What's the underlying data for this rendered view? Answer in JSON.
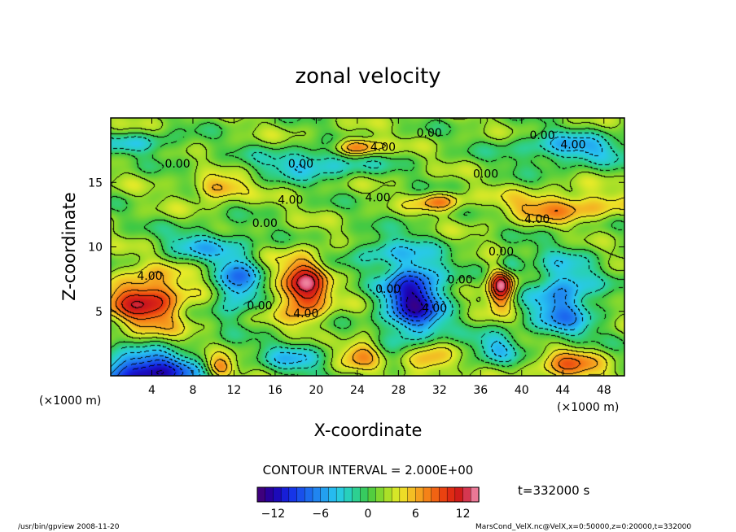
{
  "chart_data": {
    "type": "heatmap",
    "title": "zonal velocity",
    "xlabel": "X-coordinate",
    "ylabel": "Z-coordinate",
    "x_unit": "(×1000 m)",
    "y_unit": "(×1000 m)",
    "xlim": [
      0,
      50
    ],
    "ylim": [
      0,
      20
    ],
    "x_ticks": [
      "4",
      "8",
      "12",
      "16",
      "20",
      "24",
      "28",
      "32",
      "36",
      "40",
      "44",
      "48"
    ],
    "x_tick_values": [
      4,
      8,
      12,
      16,
      20,
      24,
      28,
      32,
      36,
      40,
      44,
      48
    ],
    "y_ticks": [
      "5",
      "10",
      "15"
    ],
    "y_tick_values": [
      5,
      10,
      15
    ],
    "contour_interval_text": "CONTOUR INTERVAL = 2.000E+00",
    "time_text": "t=332000 s",
    "colorbar": {
      "range": [
        -14,
        14
      ],
      "ticks": [
        "−12",
        "−6",
        "0",
        "6",
        "12"
      ],
      "tick_values": [
        -12,
        -6,
        0,
        6,
        12
      ]
    },
    "contour_labels": [
      {
        "text": "0.00",
        "x": 31,
        "z": 18.8
      },
      {
        "text": "0.00",
        "x": 42,
        "z": 18.6
      },
      {
        "text": "4.00",
        "x": 26.5,
        "z": 17.7
      },
      {
        "text": "4.00",
        "x": 45,
        "z": 17.9
      },
      {
        "text": "0.00",
        "x": 6.5,
        "z": 16.4
      },
      {
        "text": "0.00",
        "x": 18.5,
        "z": 16.4
      },
      {
        "text": "0.00",
        "x": 36.5,
        "z": 15.6
      },
      {
        "text": "4.00",
        "x": 17.5,
        "z": 13.6
      },
      {
        "text": "4.00",
        "x": 26,
        "z": 13.8
      },
      {
        "text": "4.00",
        "x": 41.5,
        "z": 12.1
      },
      {
        "text": "0.00",
        "x": 15,
        "z": 11.8
      },
      {
        "text": "0.00",
        "x": 38,
        "z": 9.6
      },
      {
        "text": "4.00",
        "x": 3.8,
        "z": 7.7
      },
      {
        "text": "0.00",
        "x": 14.5,
        "z": 5.4
      },
      {
        "text": "4.00",
        "x": 19,
        "z": 4.8
      },
      {
        "text": "0.00",
        "x": 27,
        "z": 6.7
      },
      {
        "text": "0.00",
        "x": 34,
        "z": 7.4
      },
      {
        "text": "4.00",
        "x": 31.5,
        "z": 5.2
      }
    ],
    "features": [
      {
        "kind": "max",
        "value": 10,
        "x": 3.5,
        "z": 5.8,
        "sx": 2.6,
        "sz": 1.5
      },
      {
        "kind": "max",
        "value": 11,
        "x": 18.8,
        "z": 6.7,
        "sx": 1.6,
        "sz": 1.7
      },
      {
        "kind": "max",
        "value": 13,
        "x": 38,
        "z": 7.0,
        "sx": 0.9,
        "sz": 1.1
      },
      {
        "kind": "max",
        "value": 8,
        "x": 24,
        "z": 17.7,
        "sx": 1.6,
        "sz": 0.5
      },
      {
        "kind": "max",
        "value": 6,
        "x": 44,
        "z": 13.1,
        "sx": 4.0,
        "sz": 0.8
      },
      {
        "kind": "max",
        "value": 6,
        "x": 32,
        "z": 13.5,
        "sx": 1.6,
        "sz": 0.5
      },
      {
        "kind": "max",
        "value": 7,
        "x": 44.5,
        "z": 0.9,
        "sx": 2.2,
        "sz": 1.1
      },
      {
        "kind": "max",
        "value": 6,
        "x": 30.5,
        "z": 1.1,
        "sx": 1.6,
        "sz": 1.0
      },
      {
        "kind": "max",
        "value": 6,
        "x": 24.5,
        "z": 1.8,
        "sx": 1.4,
        "sz": 0.8
      },
      {
        "kind": "max",
        "value": 7,
        "x": 10.5,
        "z": 0.6,
        "sx": 1.0,
        "sz": 0.6
      },
      {
        "kind": "max",
        "value": 6,
        "x": 10.5,
        "z": 14.5,
        "sx": 1.7,
        "sz": 0.6
      },
      {
        "kind": "min",
        "value": -13,
        "x": 29.5,
        "z": 6.0,
        "sx": 2.1,
        "sz": 2.3
      },
      {
        "kind": "min",
        "value": -8,
        "x": 44,
        "z": 5.8,
        "sx": 2.3,
        "sz": 2.4
      },
      {
        "kind": "min",
        "value": -8,
        "x": 12.3,
        "z": 7.2,
        "sx": 1.4,
        "sz": 1.7
      },
      {
        "kind": "min",
        "value": -14,
        "x": 3.5,
        "z": 0.2,
        "sx": 3.4,
        "sz": 1.1
      },
      {
        "kind": "min",
        "value": -6,
        "x": 45,
        "z": 17.6,
        "sx": 4.0,
        "sz": 0.9
      },
      {
        "kind": "min",
        "value": -6,
        "x": 20,
        "z": 16.5,
        "sx": 3.8,
        "sz": 0.8
      },
      {
        "kind": "min",
        "value": -4,
        "x": 3,
        "z": 18.0,
        "sx": 3.0,
        "sz": 0.6
      },
      {
        "kind": "min",
        "value": -6,
        "x": 38.5,
        "z": 8.6,
        "sx": 0.9,
        "sz": 0.7
      },
      {
        "kind": "min",
        "value": -5,
        "x": 18,
        "z": 1.5,
        "sx": 2.2,
        "sz": 1.0
      },
      {
        "kind": "min",
        "value": -5,
        "x": 37.5,
        "z": 2.2,
        "sx": 1.6,
        "sz": 0.9
      },
      {
        "kind": "min",
        "value": -5,
        "x": 9,
        "z": 10.2,
        "sx": 2.6,
        "sz": 0.9
      },
      {
        "kind": "min",
        "value": -4,
        "x": 26,
        "z": 9.7,
        "sx": 2.0,
        "sz": 0.8
      }
    ]
  },
  "footer": {
    "left": "/usr/bin/gpview   2008-11-20",
    "right": "MarsCond_VelX.nc@VelX,x=0:50000,z=0:20000,t=332000"
  }
}
